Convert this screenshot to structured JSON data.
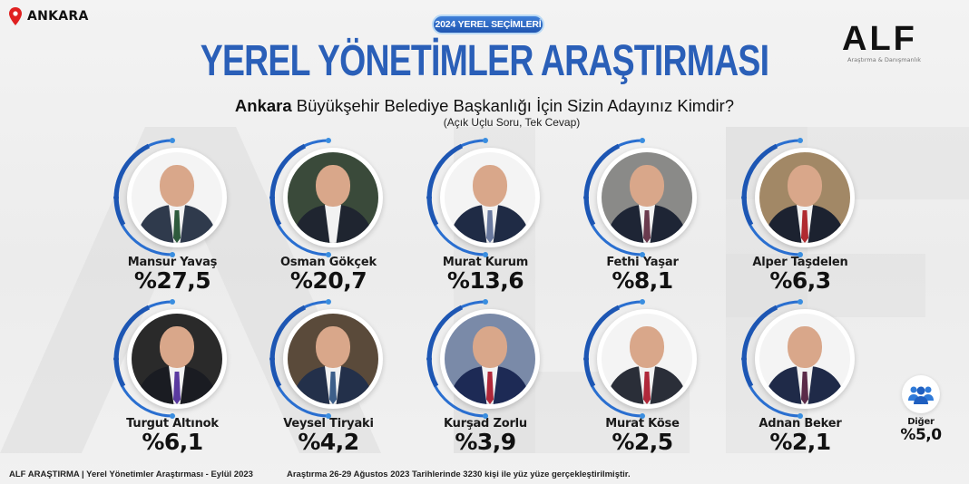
{
  "location": {
    "icon": "map-pin-icon",
    "label": "ANKARA"
  },
  "badge": "2024 YEREL SEÇİMLERİ",
  "title": "YEREL YÖNETİMLER ARAŞTIRMASI",
  "brand": {
    "name": "ALF",
    "tagline": "Araştırma & Danışmanlık"
  },
  "question": {
    "city": "Ankara",
    "text": "Büyükşehir Belediye Başkanlığı İçin Sizin Adayınız Kimdir?",
    "note": "(Açık Uçlu Soru, Tek Cevap)"
  },
  "candidates": [
    {
      "name": "Mansur Yavaş",
      "pct": "%27,5",
      "suit": "#2f3a4c",
      "tie": "#2d5a3c",
      "bg": "#f4f4f4"
    },
    {
      "name": "Osman Gökçek",
      "pct": "%20,7",
      "suit": "#1f2530",
      "tie": "#f2f2f2",
      "bg": "#3a4a3a"
    },
    {
      "name": "Murat Kurum",
      "pct": "%13,6",
      "suit": "#1f2b45",
      "tie": "#6a7aa0",
      "bg": "#f4f4f4"
    },
    {
      "name": "Fethi Yaşar",
      "pct": "%8,1",
      "suit": "#1e2535",
      "tie": "#6a3a4e",
      "bg": "#8a8a88"
    },
    {
      "name": "Alper Taşdelen",
      "pct": "%6,3",
      "suit": "#1c2230",
      "tie": "#b02a30",
      "bg": "#a28866"
    },
    {
      "name": "Turgut Altınok",
      "pct": "%6,1",
      "suit": "#1a1c22",
      "tie": "#5a3aa0",
      "bg": "#2a2a2a"
    },
    {
      "name": "Veysel Tiryaki",
      "pct": "%4,2",
      "suit": "#23304a",
      "tie": "#3d5f8a",
      "bg": "#5a4a3a"
    },
    {
      "name": "Kurşad Zorlu",
      "pct": "%3,9",
      "suit": "#1d2a55",
      "tie": "#b0283a",
      "bg": "#7a8aa8"
    },
    {
      "name": "Murat Köse",
      "pct": "%2,5",
      "suit": "#2a2e38",
      "tie": "#b0283a",
      "bg": "#f4f4f4"
    },
    {
      "name": "Adnan Beker",
      "pct": "%2,1",
      "suit": "#1f2a48",
      "tie": "#5a2a48",
      "bg": "#f4f4f4"
    }
  ],
  "other": {
    "icon": "group-icon",
    "name": "Diğer",
    "pct": "%5,0"
  },
  "footer": {
    "left": "ALF ARAŞTIRMA | Yerel Yönetimler Araştırması - Eylül 2023",
    "right": "Araştırma 26-29 Ağustos 2023 Tarihlerinde 3230 kişi ile yüz yüze gerçekleştirilmiştir."
  },
  "chart_data": {
    "type": "bar",
    "title": "YEREL YÖNETİMLER ARAŞTIRMASI - Ankara Büyükşehir Belediye Başkanlığı İçin Sizin Adayınız Kimdir?",
    "subtitle": "(Açık Uçlu Soru, Tek Cevap)",
    "categories": [
      "Mansur Yavaş",
      "Osman Gökçek",
      "Murat Kurum",
      "Fethi Yaşar",
      "Alper Taşdelen",
      "Turgut Altınok",
      "Veysel Tiryaki",
      "Kurşad Zorlu",
      "Murat Köse",
      "Adnan Beker",
      "Diğer"
    ],
    "values": [
      27.5,
      20.7,
      13.6,
      8.1,
      6.3,
      6.1,
      4.2,
      3.9,
      2.5,
      2.1,
      5.0
    ],
    "xlabel": "",
    "ylabel": "%",
    "source": "ALF ARAŞTIRMA | Yerel Yönetimler Araştırması - Eylül 2023"
  }
}
